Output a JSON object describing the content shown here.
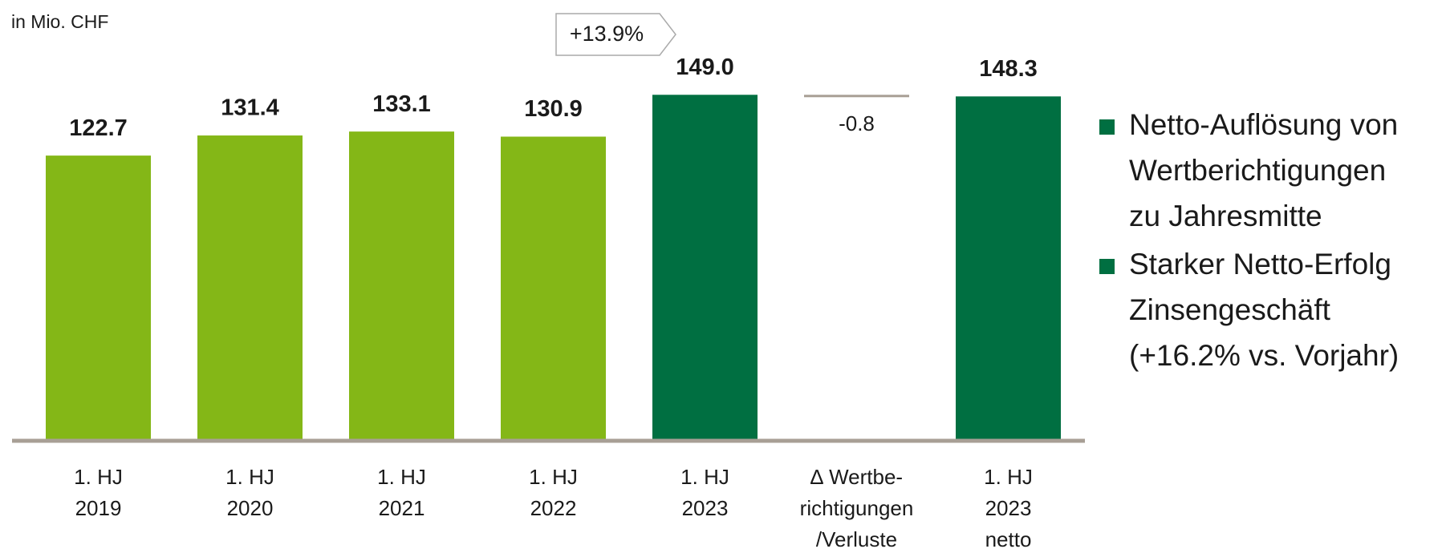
{
  "chart_data": {
    "type": "waterfall",
    "subtitle": "in Mio. CHF",
    "categories": [
      "1. HJ\n2019",
      "1. HJ\n2020",
      "1. HJ\n2021",
      "1. HJ\n2022",
      "1. HJ\n2023",
      "∆  Wertbe-\nrichtigungen\n/Verluste",
      "1. HJ\n2023\nnetto"
    ],
    "values": [
      122.7,
      131.4,
      133.1,
      130.9,
      149.0,
      -0.8,
      148.3
    ],
    "value_labels": [
      "122.7",
      "131.4",
      "133.1",
      "130.9",
      "149.0",
      "-0.8",
      "148.3"
    ],
    "colors": [
      "#84b717",
      "#84b717",
      "#84b717",
      "#84b717",
      "#006f41",
      "#a89f95",
      "#006f41"
    ],
    "ylim": [
      0,
      150
    ],
    "annotation": "+13.9%",
    "bullets": [
      {
        "lines": [
          "Netto-Auflösung von",
          "Wertberichtigungen",
          "zu Jahresmitte"
        ]
      },
      {
        "lines": [
          "Starker Netto-Erfolg",
          "Zinsengeschäft",
          "(+16.2% vs. Vorjahr)"
        ]
      }
    ],
    "bullet_color": "#006f41"
  }
}
